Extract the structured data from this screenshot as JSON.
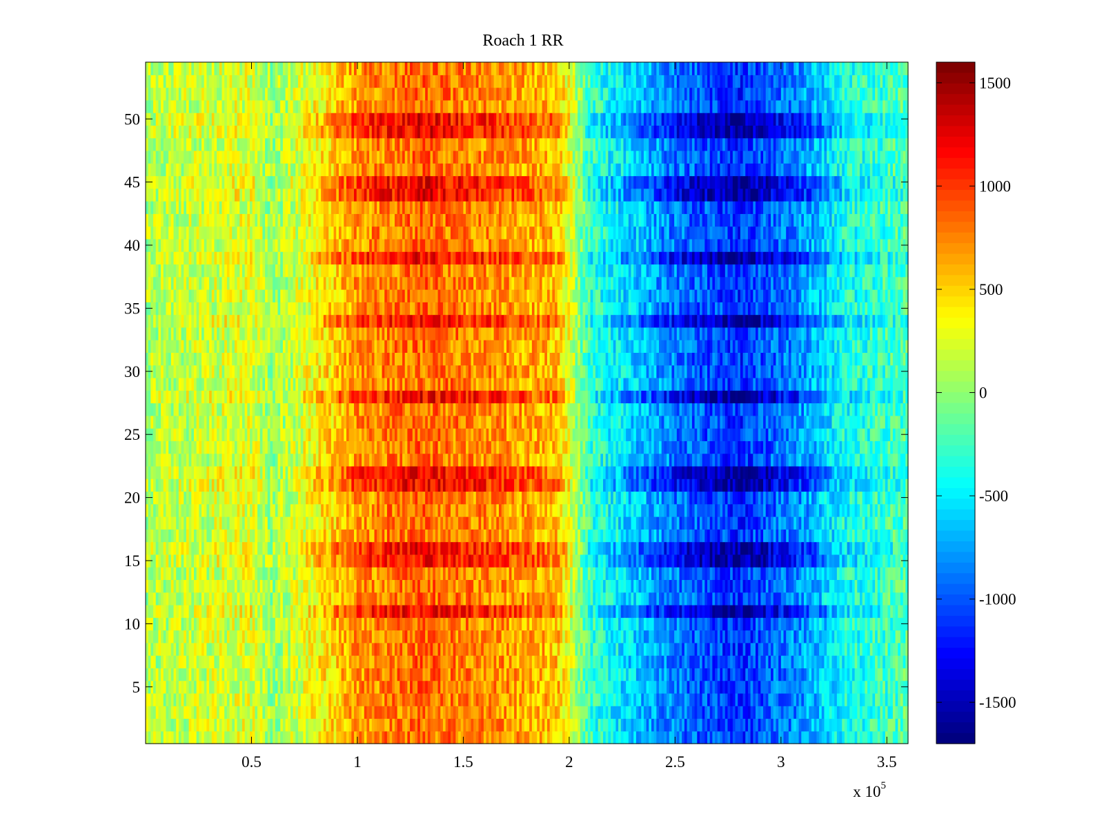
{
  "chart_data": {
    "type": "heatmap",
    "title": "Roach 1 RR",
    "xlabel": "",
    "ylabel": "",
    "x_exponent_label": "x 10",
    "x_exponent_power": "5",
    "xlim": [
      0,
      3.6
    ],
    "ylim": [
      0.5,
      54.5
    ],
    "x_ticks": [
      0.5,
      1,
      1.5,
      2,
      2.5,
      3,
      3.5
    ],
    "x_tick_labels": [
      "0.5",
      "1",
      "1.5",
      "2",
      "2.5",
      "3",
      "3.5"
    ],
    "y_ticks": [
      5,
      10,
      15,
      20,
      25,
      30,
      35,
      40,
      45,
      50
    ],
    "y_tick_labels": [
      "5",
      "10",
      "15",
      "20",
      "25",
      "30",
      "35",
      "40",
      "45",
      "50"
    ],
    "rows": 54,
    "colormap": "jet",
    "clim": [
      -1700,
      1600
    ],
    "colorbar_ticks": [
      1500,
      1000,
      500,
      0,
      -500,
      -1000,
      -1500
    ],
    "colorbar_tick_labels": [
      "1500",
      "1000",
      "500",
      "0",
      "-500",
      "-1000",
      "-1500"
    ],
    "profile_x": [
      0,
      0.5,
      0.6,
      1.0,
      1.3,
      1.7,
      1.95,
      2.1,
      2.5,
      2.8,
      3.1,
      3.3,
      3.6
    ],
    "profile_value": [
      100,
      250,
      20,
      700,
      850,
      700,
      550,
      -300,
      -900,
      -1150,
      -800,
      -400,
      -200
    ],
    "strong_rows": [
      11,
      15,
      16,
      21,
      22,
      28,
      34,
      39,
      44,
      45,
      49,
      50
    ],
    "strong_rows_gain": 1.45,
    "noise_amplitude": 280
  }
}
